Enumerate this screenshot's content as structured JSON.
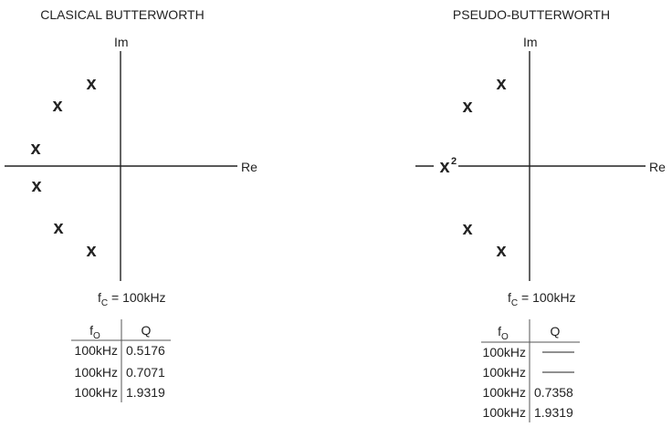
{
  "left": {
    "title": "CLASICAL BUTTERWORTH",
    "im_label": "Im",
    "re_label": "Re",
    "fc_label": "f",
    "fc_sub": "C",
    "fc_value": " = 100kHz",
    "pole_marker": "x",
    "pole_count": 6,
    "table": {
      "header_f": "f",
      "header_f_sub": "O",
      "header_q": "Q",
      "rows": [
        {
          "f0": "100kHz",
          "q": "0.5176"
        },
        {
          "f0": "100kHz",
          "q": "0.7071"
        },
        {
          "f0": "100kHz",
          "q": "1.9319"
        }
      ]
    }
  },
  "right": {
    "title": "PSEUDO-BUTTERWORTH",
    "im_label": "Im",
    "re_label": "Re",
    "fc_label": "f",
    "fc_sub": "C",
    "fc_value": " = 100kHz",
    "pole_marker": "x",
    "double_pole_superscript": "2",
    "pole_count": 5,
    "table": {
      "header_f": "f",
      "header_f_sub": "O",
      "header_q": "Q",
      "rows": [
        {
          "f0": "100kHz",
          "q": ""
        },
        {
          "f0": "100kHz",
          "q": ""
        },
        {
          "f0": "100kHz",
          "q": "0.7358"
        },
        {
          "f0": "100kHz",
          "q": "1.9319"
        }
      ]
    }
  }
}
